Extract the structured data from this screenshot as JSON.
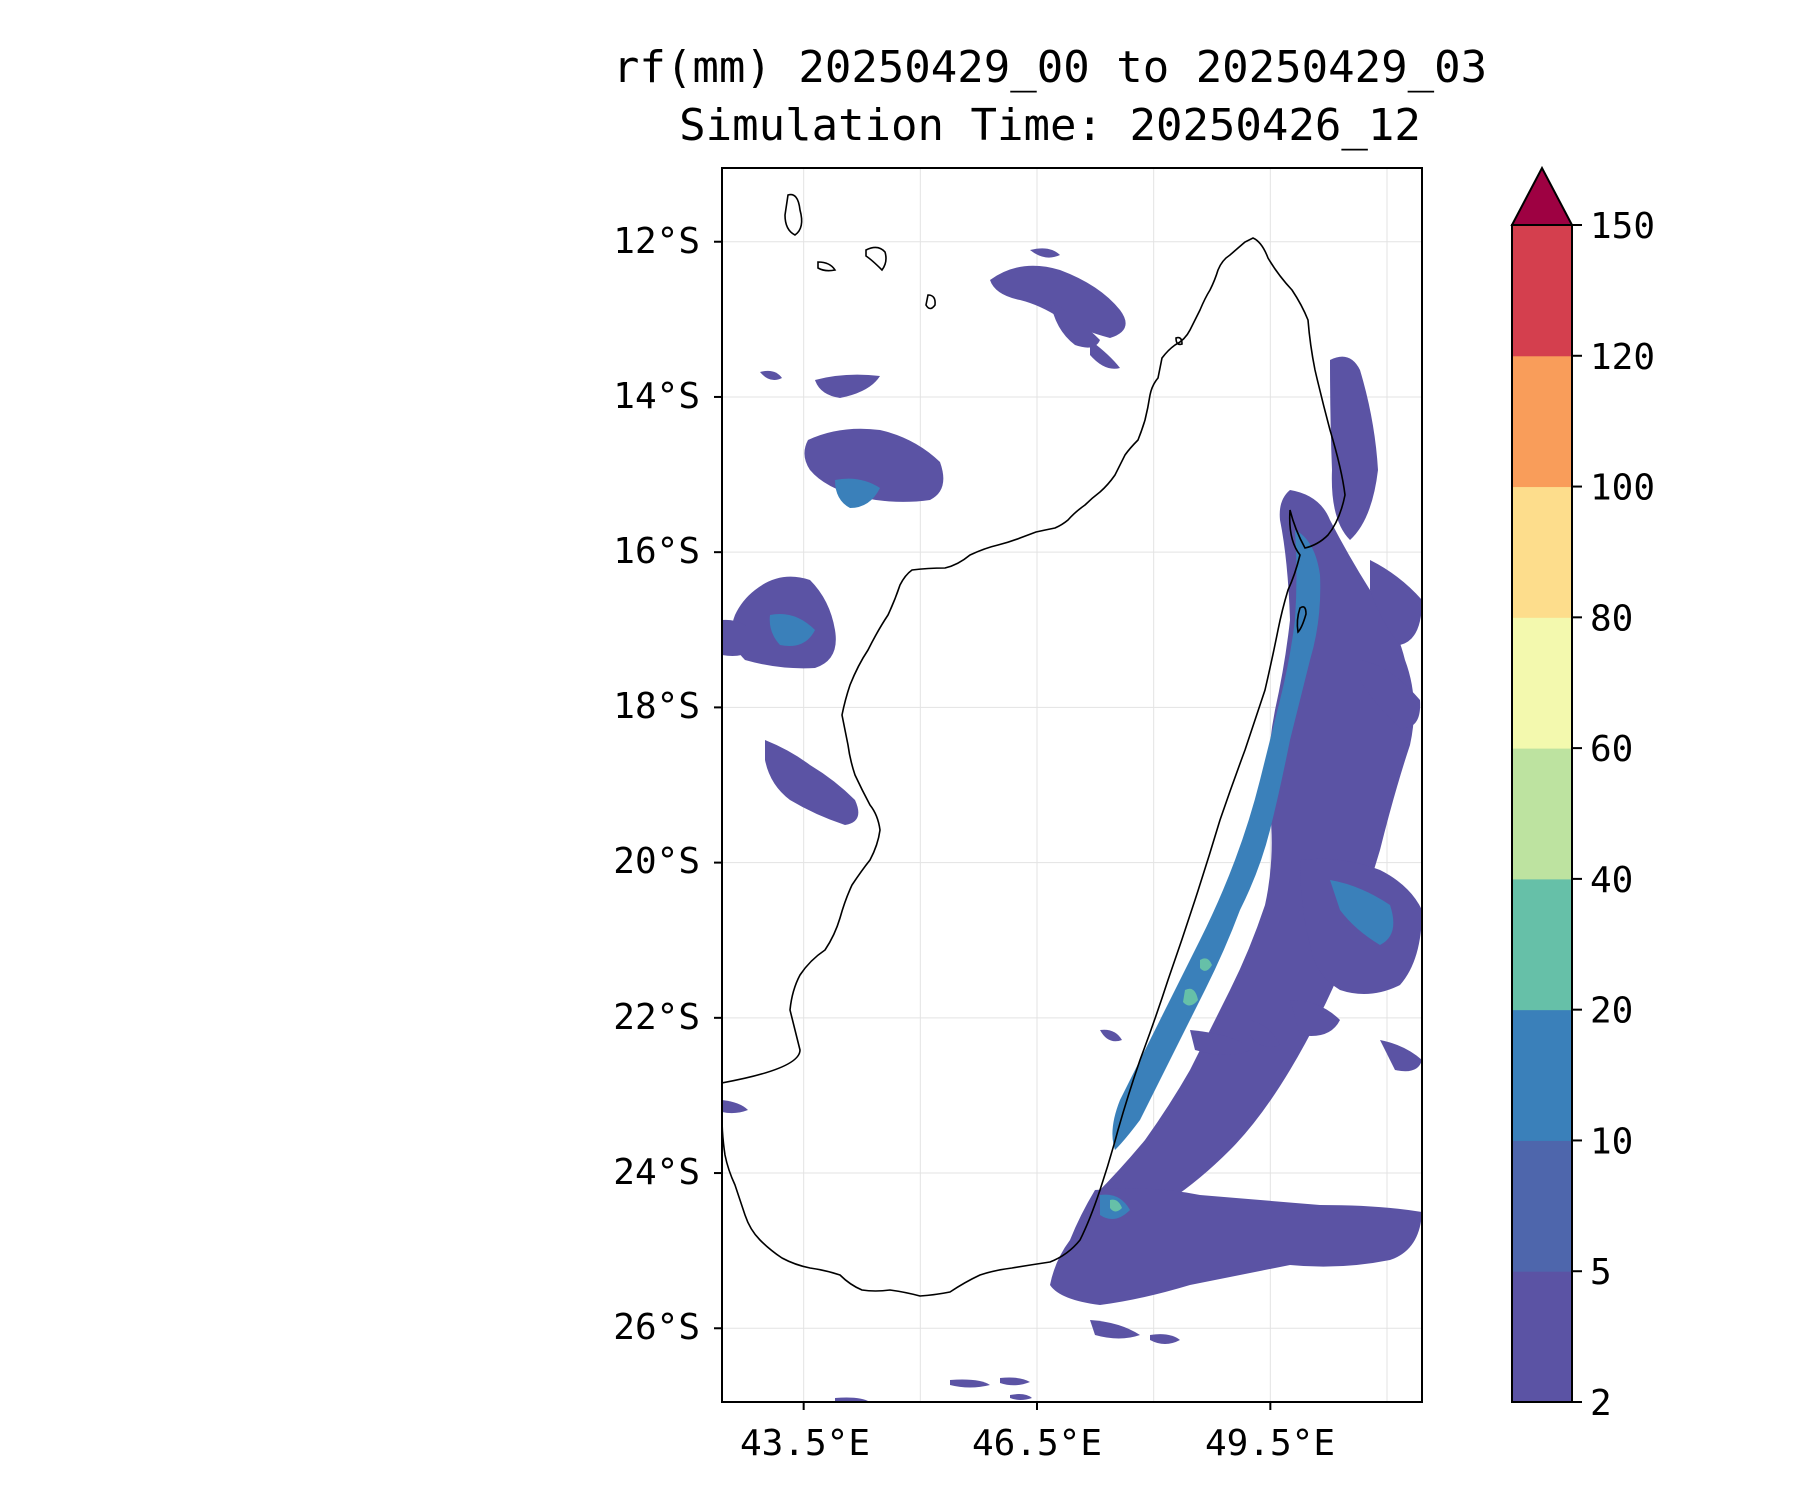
{
  "title": {
    "line1": "rf(mm) 20250429_00 to 20250429_03",
    "line2": "Simulation Time: 20250426_12"
  },
  "map": {
    "lat_labels": [
      "12°S",
      "14°S",
      "16°S",
      "18°S",
      "20°S",
      "22°S",
      "24°S",
      "26°S"
    ],
    "lon_labels": [
      "43.5°E",
      "46.5°E",
      "49.5°E"
    ],
    "lon_range_deg_e": [
      42.45,
      51.45
    ],
    "lat_range_deg_s": [
      11.05,
      26.95
    ],
    "gridlines": true,
    "coastline_color": "#000000"
  },
  "colorbar": {
    "levels": [
      2,
      5,
      10,
      20,
      40,
      60,
      80,
      100,
      120,
      150
    ],
    "tick_labels": [
      "2",
      "5",
      "10",
      "20",
      "40",
      "60",
      "80",
      "100",
      "120",
      "150"
    ],
    "colors": [
      "#5b53a4",
      "#4e66ac",
      "#3a80ba",
      "#66c0a8",
      "#bde3a0",
      "#f3f9ae",
      "#fddd8c",
      "#f99d5a",
      "#d43f4e"
    ],
    "extend_color": "#9e0142"
  }
}
